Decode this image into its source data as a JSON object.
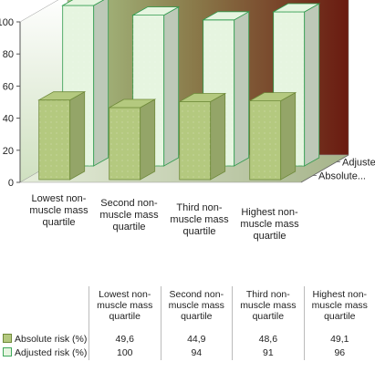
{
  "chart_data": {
    "type": "bar",
    "categories": [
      "Lowest non-muscle mass quartile",
      "Second non-muscle mass quartile",
      "Third non-muscle mass quartile",
      "Highest non-muscle mass quartile"
    ],
    "category_lines": [
      [
        "Lowest non-",
        "muscle mass",
        "quartile"
      ],
      [
        "Second non-",
        "muscle mass",
        "quartile"
      ],
      [
        "Third non-",
        "muscle mass",
        "quartile"
      ],
      [
        "Highest non-",
        "muscle mass",
        "quartile"
      ]
    ],
    "series": [
      {
        "name": "Absolute risk (%)",
        "axis_label": "Absolute...",
        "values": [
          49.6,
          44.9,
          48.6,
          49.1
        ],
        "display": [
          "49,6",
          "44,9",
          "48,6",
          "49,1"
        ],
        "color": "#b4c97f"
      },
      {
        "name": "Adjusted risk (%)",
        "axis_label": "Adjusted...",
        "values": [
          100,
          94,
          91,
          96
        ],
        "display": [
          "100",
          "94",
          "91",
          "96"
        ],
        "color": "#e6f5e0"
      }
    ],
    "yticks": [
      "0",
      "20",
      "40",
      "60",
      "80",
      "100"
    ],
    "ylim": [
      0,
      100
    ],
    "title": "",
    "xlabel": "",
    "ylabel": "",
    "legend": "data-table",
    "grid": false
  }
}
